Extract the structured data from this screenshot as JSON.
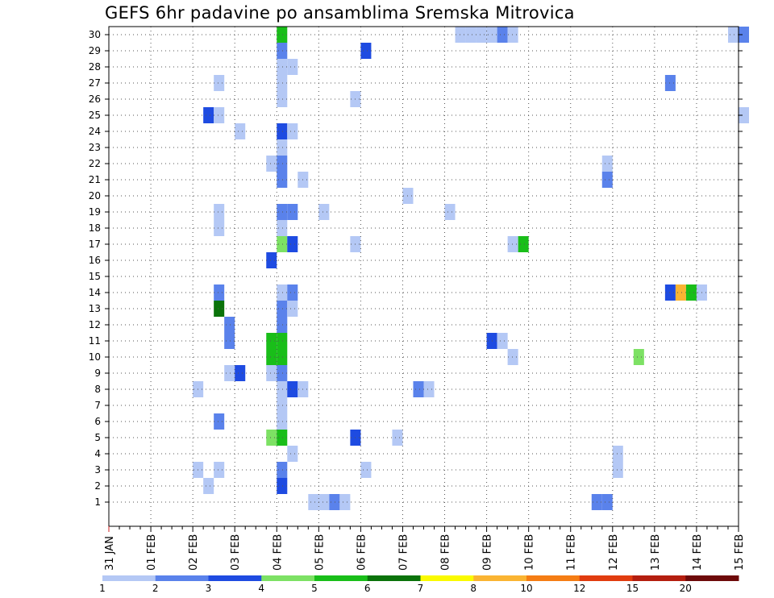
{
  "chart_data": {
    "type": "heatmap",
    "title": "GEFS 6hr padavine po ansamblima Sremska Mitrovica",
    "x_tick_labels": [
      "31 JAN",
      "01 FEB",
      "02 FEB",
      "03 FEB",
      "04 FEB",
      "05 FEB",
      "06 FEB",
      "07 FEB",
      "08 FEB",
      "09 FEB",
      "10 FEB",
      "11 FEB",
      "12 FEB",
      "13 FEB",
      "14 FEB",
      "15 FEB"
    ],
    "x_unit": "6-hour step from 31 JAN 00Z",
    "y_members": [
      1,
      2,
      3,
      4,
      5,
      6,
      7,
      8,
      9,
      10,
      11,
      12,
      13,
      14,
      15,
      16,
      17,
      18,
      19,
      20,
      21,
      22,
      23,
      24,
      25,
      26,
      27,
      28,
      29,
      30
    ],
    "grid": true,
    "legend": {
      "placement": "bottom",
      "thresholds": [
        "1",
        "2",
        "3",
        "4",
        "5",
        "6",
        "7",
        "8",
        "10",
        "12",
        "15",
        "20"
      ],
      "colors": [
        "#b4c8f5",
        "#5a82eb",
        "#1e4be1",
        "#7de164",
        "#19be19",
        "#0a730a",
        "#fafa00",
        "#fab432",
        "#f57d14",
        "#e13c0f",
        "#b41e0f",
        "#6e0a0a"
      ]
    },
    "cells": [
      {
        "step": 19,
        "member": 1,
        "bin": 0
      },
      {
        "step": 20,
        "member": 1,
        "bin": 0
      },
      {
        "step": 21,
        "member": 1,
        "bin": 1
      },
      {
        "step": 22,
        "member": 1,
        "bin": 0
      },
      {
        "step": 46,
        "member": 1,
        "bin": 1
      },
      {
        "step": 47,
        "member": 1,
        "bin": 1
      },
      {
        "step": 9,
        "member": 2,
        "bin": 0
      },
      {
        "step": 16,
        "member": 2,
        "bin": 2
      },
      {
        "step": 8,
        "member": 3,
        "bin": 0
      },
      {
        "step": 10,
        "member": 3,
        "bin": 0
      },
      {
        "step": 16,
        "member": 3,
        "bin": 1
      },
      {
        "step": 24,
        "member": 3,
        "bin": 0
      },
      {
        "step": 48,
        "member": 3,
        "bin": 0
      },
      {
        "step": 17,
        "member": 4,
        "bin": 0
      },
      {
        "step": 48,
        "member": 4,
        "bin": 0
      },
      {
        "step": 15,
        "member": 5,
        "bin": 3
      },
      {
        "step": 16,
        "member": 5,
        "bin": 4
      },
      {
        "step": 23,
        "member": 5,
        "bin": 2
      },
      {
        "step": 27,
        "member": 5,
        "bin": 0
      },
      {
        "step": 10,
        "member": 6,
        "bin": 1
      },
      {
        "step": 16,
        "member": 6,
        "bin": 0
      },
      {
        "step": 16,
        "member": 7,
        "bin": 0
      },
      {
        "step": 8,
        "member": 8,
        "bin": 0
      },
      {
        "step": 16,
        "member": 8,
        "bin": 0
      },
      {
        "step": 17,
        "member": 8,
        "bin": 2
      },
      {
        "step": 18,
        "member": 8,
        "bin": 0
      },
      {
        "step": 29,
        "member": 8,
        "bin": 1
      },
      {
        "step": 30,
        "member": 8,
        "bin": 0
      },
      {
        "step": 11,
        "member": 9,
        "bin": 0
      },
      {
        "step": 12,
        "member": 9,
        "bin": 2
      },
      {
        "step": 15,
        "member": 9,
        "bin": 0
      },
      {
        "step": 16,
        "member": 9,
        "bin": 1
      },
      {
        "step": 15,
        "member": 10,
        "bin": 4
      },
      {
        "step": 16,
        "member": 10,
        "bin": 4
      },
      {
        "step": 38,
        "member": 10,
        "bin": 0
      },
      {
        "step": 50,
        "member": 10,
        "bin": 3
      },
      {
        "step": 15,
        "member": 11,
        "bin": 4
      },
      {
        "step": 16,
        "member": 11,
        "bin": 4
      },
      {
        "step": 11,
        "member": 11,
        "bin": 1
      },
      {
        "step": 36,
        "member": 11,
        "bin": 2
      },
      {
        "step": 37,
        "member": 11,
        "bin": 0
      },
      {
        "step": 11,
        "member": 12,
        "bin": 1
      },
      {
        "step": 16,
        "member": 12,
        "bin": 1
      },
      {
        "step": 10,
        "member": 13,
        "bin": 5
      },
      {
        "step": 16,
        "member": 13,
        "bin": 1
      },
      {
        "step": 17,
        "member": 13,
        "bin": 0
      },
      {
        "step": 10,
        "member": 14,
        "bin": 1
      },
      {
        "step": 16,
        "member": 14,
        "bin": 0
      },
      {
        "step": 17,
        "member": 14,
        "bin": 1
      },
      {
        "step": 53,
        "member": 14,
        "bin": 2
      },
      {
        "step": 54,
        "member": 14,
        "bin": 7
      },
      {
        "step": 55,
        "member": 14,
        "bin": 4
      },
      {
        "step": 56,
        "member": 14,
        "bin": 0
      },
      {
        "step": 15,
        "member": 16,
        "bin": 2
      },
      {
        "step": 16,
        "member": 17,
        "bin": 3
      },
      {
        "step": 17,
        "member": 17,
        "bin": 2
      },
      {
        "step": 23,
        "member": 17,
        "bin": 0
      },
      {
        "step": 38,
        "member": 17,
        "bin": 0
      },
      {
        "step": 39,
        "member": 17,
        "bin": 4
      },
      {
        "step": 16,
        "member": 18,
        "bin": 0
      },
      {
        "step": 16,
        "member": 19,
        "bin": 1
      },
      {
        "step": 17,
        "member": 19,
        "bin": 1
      },
      {
        "step": 10,
        "member": 19,
        "bin": 0
      },
      {
        "step": 10,
        "member": 18,
        "bin": 0
      },
      {
        "step": 20,
        "member": 19,
        "bin": 0
      },
      {
        "step": 32,
        "member": 19,
        "bin": 0
      },
      {
        "step": 28,
        "member": 20,
        "bin": 0
      },
      {
        "step": 16,
        "member": 21,
        "bin": 1
      },
      {
        "step": 18,
        "member": 21,
        "bin": 0
      },
      {
        "step": 47,
        "member": 21,
        "bin": 1
      },
      {
        "step": 15,
        "member": 22,
        "bin": 0
      },
      {
        "step": 16,
        "member": 22,
        "bin": 1
      },
      {
        "step": 47,
        "member": 22,
        "bin": 0
      },
      {
        "step": 16,
        "member": 23,
        "bin": 0
      },
      {
        "step": 16,
        "member": 24,
        "bin": 2
      },
      {
        "step": 17,
        "member": 24,
        "bin": 0
      },
      {
        "step": 12,
        "member": 24,
        "bin": 0
      },
      {
        "step": 9,
        "member": 25,
        "bin": 2
      },
      {
        "step": 10,
        "member": 25,
        "bin": 0
      },
      {
        "step": 60,
        "member": 25,
        "bin": 0
      },
      {
        "step": 16,
        "member": 26,
        "bin": 0
      },
      {
        "step": 23,
        "member": 26,
        "bin": 0
      },
      {
        "step": 10,
        "member": 27,
        "bin": 0
      },
      {
        "step": 16,
        "member": 27,
        "bin": 0
      },
      {
        "step": 53,
        "member": 27,
        "bin": 1
      },
      {
        "step": 16,
        "member": 28,
        "bin": 0
      },
      {
        "step": 17,
        "member": 28,
        "bin": 0
      },
      {
        "step": 16,
        "member": 29,
        "bin": 1
      },
      {
        "step": 24,
        "member": 29,
        "bin": 2
      },
      {
        "step": 16,
        "member": 30,
        "bin": 4
      },
      {
        "step": 33,
        "member": 30,
        "bin": 0
      },
      {
        "step": 34,
        "member": 30,
        "bin": 0
      },
      {
        "step": 35,
        "member": 30,
        "bin": 0
      },
      {
        "step": 36,
        "member": 30,
        "bin": 0
      },
      {
        "step": 37,
        "member": 30,
        "bin": 1
      },
      {
        "step": 38,
        "member": 30,
        "bin": 0
      },
      {
        "step": 59,
        "member": 30,
        "bin": 0
      },
      {
        "step": 60,
        "member": 30,
        "bin": 1
      }
    ]
  }
}
